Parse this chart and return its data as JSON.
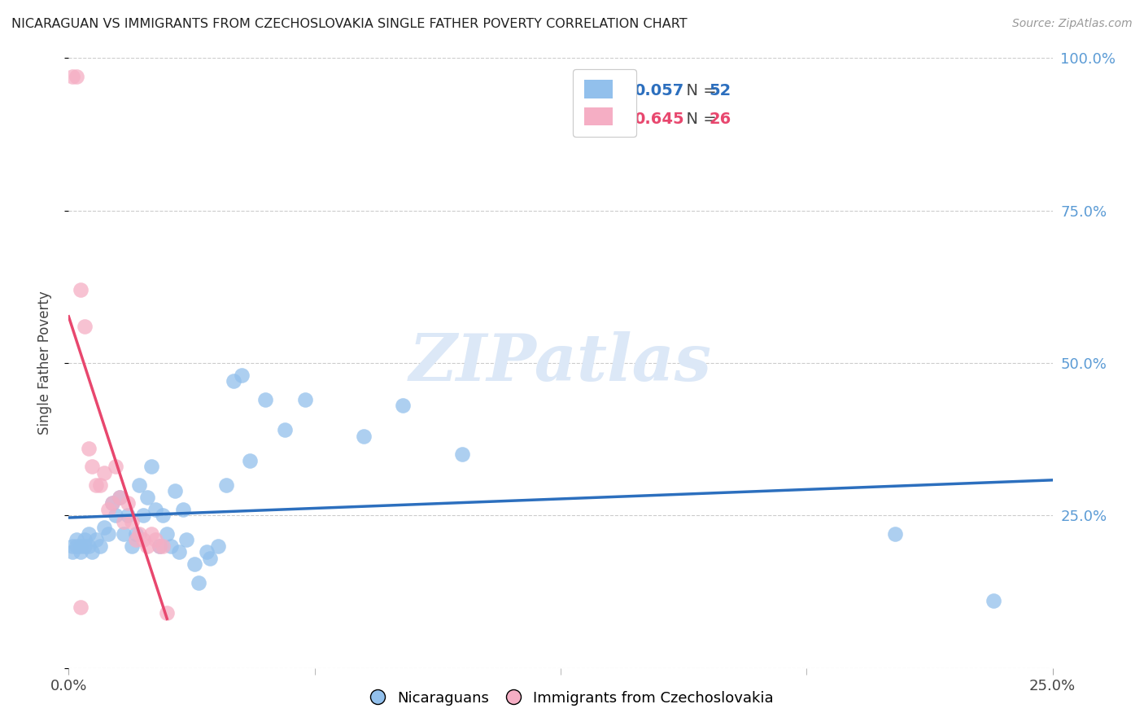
{
  "title": "NICARAGUAN VS IMMIGRANTS FROM CZECHOSLOVAKIA SINGLE FATHER POVERTY CORRELATION CHART",
  "source": "Source: ZipAtlas.com",
  "ylabel": "Single Father Poverty",
  "blue_label": "Nicaraguans",
  "pink_label": "Immigrants from Czechoslovakia",
  "blue_R": "0.057",
  "blue_N": "52",
  "pink_R": "0.645",
  "pink_N": "26",
  "blue_color": "#92c0ec",
  "blue_line_color": "#2c6fbe",
  "pink_color": "#f5aec4",
  "pink_line_color": "#e8476e",
  "watermark_color": "#dce8f7",
  "xmin": 0.0,
  "xmax": 0.25,
  "ymin": 0.0,
  "ymax": 1.0,
  "blue_scatter_x": [
    0.001,
    0.001,
    0.002,
    0.002,
    0.003,
    0.003,
    0.004,
    0.004,
    0.005,
    0.005,
    0.006,
    0.007,
    0.008,
    0.009,
    0.01,
    0.011,
    0.012,
    0.013,
    0.014,
    0.015,
    0.016,
    0.017,
    0.018,
    0.019,
    0.02,
    0.021,
    0.022,
    0.023,
    0.024,
    0.025,
    0.026,
    0.027,
    0.028,
    0.029,
    0.03,
    0.032,
    0.033,
    0.035,
    0.036,
    0.038,
    0.04,
    0.042,
    0.044,
    0.046,
    0.05,
    0.055,
    0.06,
    0.075,
    0.085,
    0.1,
    0.21,
    0.235
  ],
  "blue_scatter_y": [
    0.2,
    0.19,
    0.21,
    0.2,
    0.19,
    0.2,
    0.21,
    0.2,
    0.22,
    0.2,
    0.19,
    0.21,
    0.2,
    0.23,
    0.22,
    0.27,
    0.25,
    0.28,
    0.22,
    0.25,
    0.2,
    0.22,
    0.3,
    0.25,
    0.28,
    0.33,
    0.26,
    0.2,
    0.25,
    0.22,
    0.2,
    0.29,
    0.19,
    0.26,
    0.21,
    0.17,
    0.14,
    0.19,
    0.18,
    0.2,
    0.3,
    0.47,
    0.48,
    0.34,
    0.44,
    0.39,
    0.44,
    0.38,
    0.43,
    0.35,
    0.22,
    0.11
  ],
  "pink_scatter_x": [
    0.001,
    0.002,
    0.003,
    0.004,
    0.005,
    0.006,
    0.007,
    0.008,
    0.009,
    0.01,
    0.011,
    0.012,
    0.013,
    0.014,
    0.015,
    0.016,
    0.017,
    0.018,
    0.019,
    0.02,
    0.021,
    0.022,
    0.023,
    0.024,
    0.025,
    0.003
  ],
  "pink_scatter_y": [
    0.97,
    0.97,
    0.62,
    0.56,
    0.36,
    0.33,
    0.3,
    0.3,
    0.32,
    0.26,
    0.27,
    0.33,
    0.28,
    0.24,
    0.27,
    0.24,
    0.21,
    0.22,
    0.21,
    0.2,
    0.22,
    0.21,
    0.2,
    0.2,
    0.09,
    0.1
  ]
}
